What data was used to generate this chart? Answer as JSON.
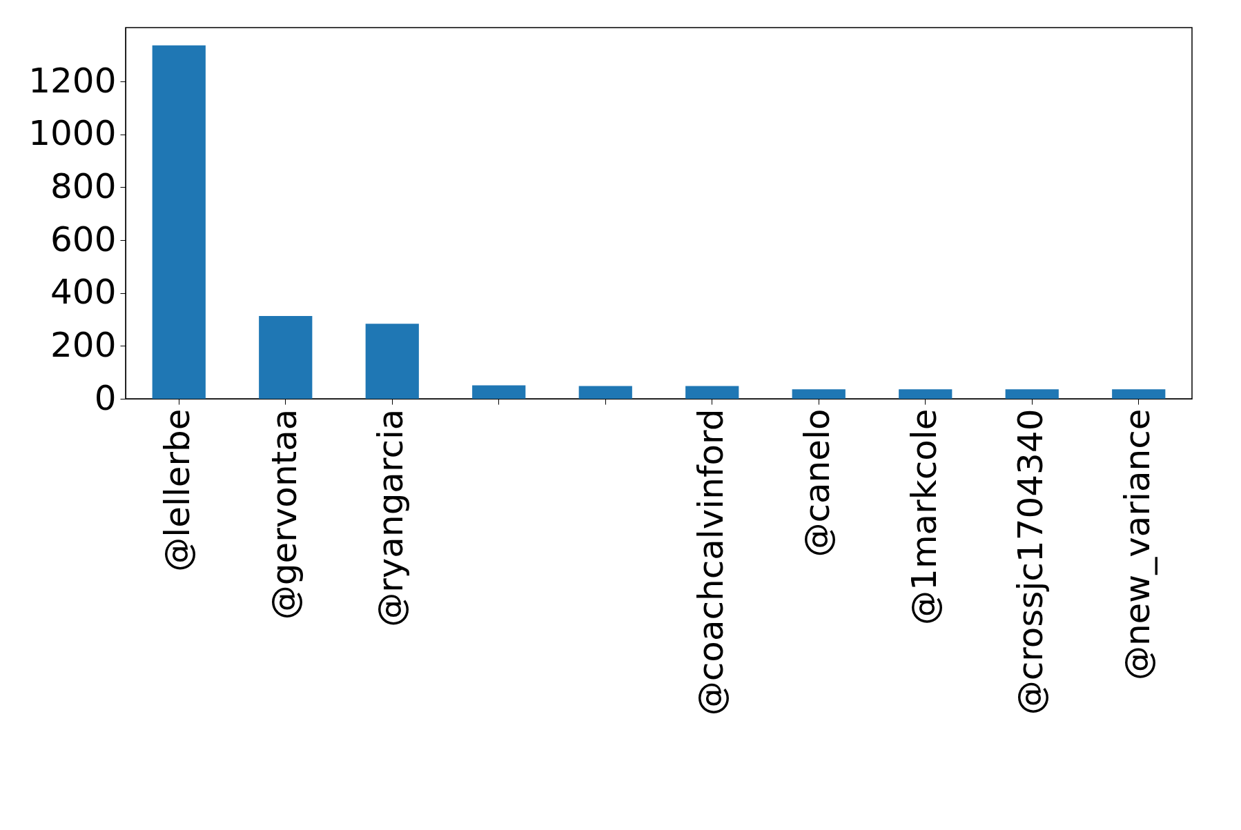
{
  "chart_data": {
    "type": "bar",
    "categories": [
      "@lellerbe",
      "@gervontaa",
      "@ryangarcia",
      null,
      null,
      "@coachcalvinford",
      "@canelo",
      "@1markcole",
      "@crossjc1704340",
      "@new_variance"
    ],
    "values": [
      1337,
      313,
      284,
      51,
      48,
      48,
      36,
      36,
      36,
      36
    ],
    "color": "#1f77b4",
    "ylim": [
      0,
      1404
    ],
    "yticks": [
      0,
      200,
      400,
      600,
      800,
      1000,
      1200
    ],
    "grid": false
  }
}
